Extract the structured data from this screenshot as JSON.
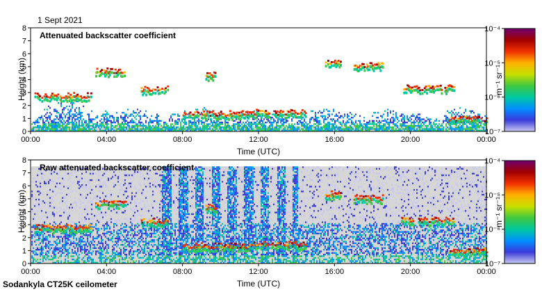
{
  "header": {
    "date": "1 Sept 2021"
  },
  "footer": {
    "instrument": "Sodankyla CT25K ceilometer"
  },
  "colors": {
    "background_data": "#d6d6d6",
    "colormap": [
      "#c8c8f0",
      "#3a3adc",
      "#0090ff",
      "#00c8a0",
      "#40c840",
      "#c8e000",
      "#ffb000",
      "#f03000",
      "#a00000",
      "#700070"
    ]
  },
  "chart_data": [
    {
      "type": "heatmap",
      "title": "Attenuated backscatter coefficient",
      "xlabel": "Time (UTC)",
      "ylabel": "Height (km)",
      "x_ticks": [
        "00:00",
        "04:00",
        "08:00",
        "12:00",
        "16:00",
        "20:00",
        "00:00"
      ],
      "xlim_hours": [
        0,
        24
      ],
      "ylim": [
        0,
        8
      ],
      "y_ticks": [
        "0",
        "1",
        "2",
        "3",
        "4",
        "5",
        "6",
        "7",
        "8"
      ],
      "colorbar": {
        "label": "m⁻¹ sr⁻¹",
        "ticks": [
          "10⁻⁴",
          "10⁻⁵",
          "10⁻⁶",
          "10⁻⁷"
        ],
        "range": [
          1e-07,
          0.0001
        ],
        "scale": "log"
      },
      "features": [
        {
          "desc": "boundary layer aerosol",
          "start_h": 0.0,
          "end_h": 24.0,
          "base_km": 0.0,
          "top_km": 1.6
        },
        {
          "desc": "low cloud layer",
          "start_h": 0.2,
          "end_h": 3.2,
          "height_km": 2.7
        },
        {
          "desc": "cloud layer",
          "start_h": 3.4,
          "end_h": 5.0,
          "height_km": 4.6
        },
        {
          "desc": "cloud layer",
          "start_h": 5.8,
          "end_h": 7.2,
          "height_km": 3.2
        },
        {
          "desc": "low cloud",
          "start_h": 8.0,
          "end_h": 11.5,
          "height_km": 1.3
        },
        {
          "desc": "mid cloud",
          "start_h": 9.2,
          "end_h": 9.8,
          "height_km": 4.3
        },
        {
          "desc": "low cloud",
          "start_h": 11.5,
          "end_h": 14.5,
          "height_km": 1.4
        },
        {
          "desc": "cloud layer",
          "start_h": 15.5,
          "end_h": 16.3,
          "height_km": 5.3
        },
        {
          "desc": "cloud layer",
          "start_h": 17.0,
          "end_h": 18.5,
          "height_km": 5.0
        },
        {
          "desc": "cloud layer",
          "start_h": 19.5,
          "end_h": 22.3,
          "height_km": 3.3
        },
        {
          "desc": "low cloud",
          "start_h": 22.0,
          "end_h": 24.0,
          "height_km": 0.9
        }
      ]
    },
    {
      "type": "heatmap",
      "title": "Raw attenuated backscatter coefficient",
      "xlabel": "Time (UTC)",
      "ylabel": "Height (km)",
      "x_ticks": [
        "00:00",
        "04:00",
        "08:00",
        "12:00",
        "16:00",
        "20:00",
        "00:00"
      ],
      "xlim_hours": [
        0,
        24
      ],
      "ylim": [
        0,
        8
      ],
      "y_ticks": [
        "0",
        "1",
        "2",
        "3",
        "4",
        "5",
        "6",
        "7",
        "8"
      ],
      "colorbar": {
        "label": "m⁻¹ sr⁻¹",
        "ticks": [
          "10⁻⁴",
          "10⁻⁵",
          "10⁻⁶",
          "10⁻⁷"
        ],
        "range": [
          1e-07,
          0.0001
        ],
        "scale": "log"
      },
      "features": [
        {
          "desc": "noise field",
          "start_h": 0.0,
          "end_h": 24.0,
          "base_km": 0.0,
          "top_km": 7.5
        },
        {
          "desc": "high noise columns",
          "start_h": 6.7,
          "end_h": 14.0,
          "base_km": 0.0,
          "top_km": 7.5
        }
      ]
    }
  ]
}
